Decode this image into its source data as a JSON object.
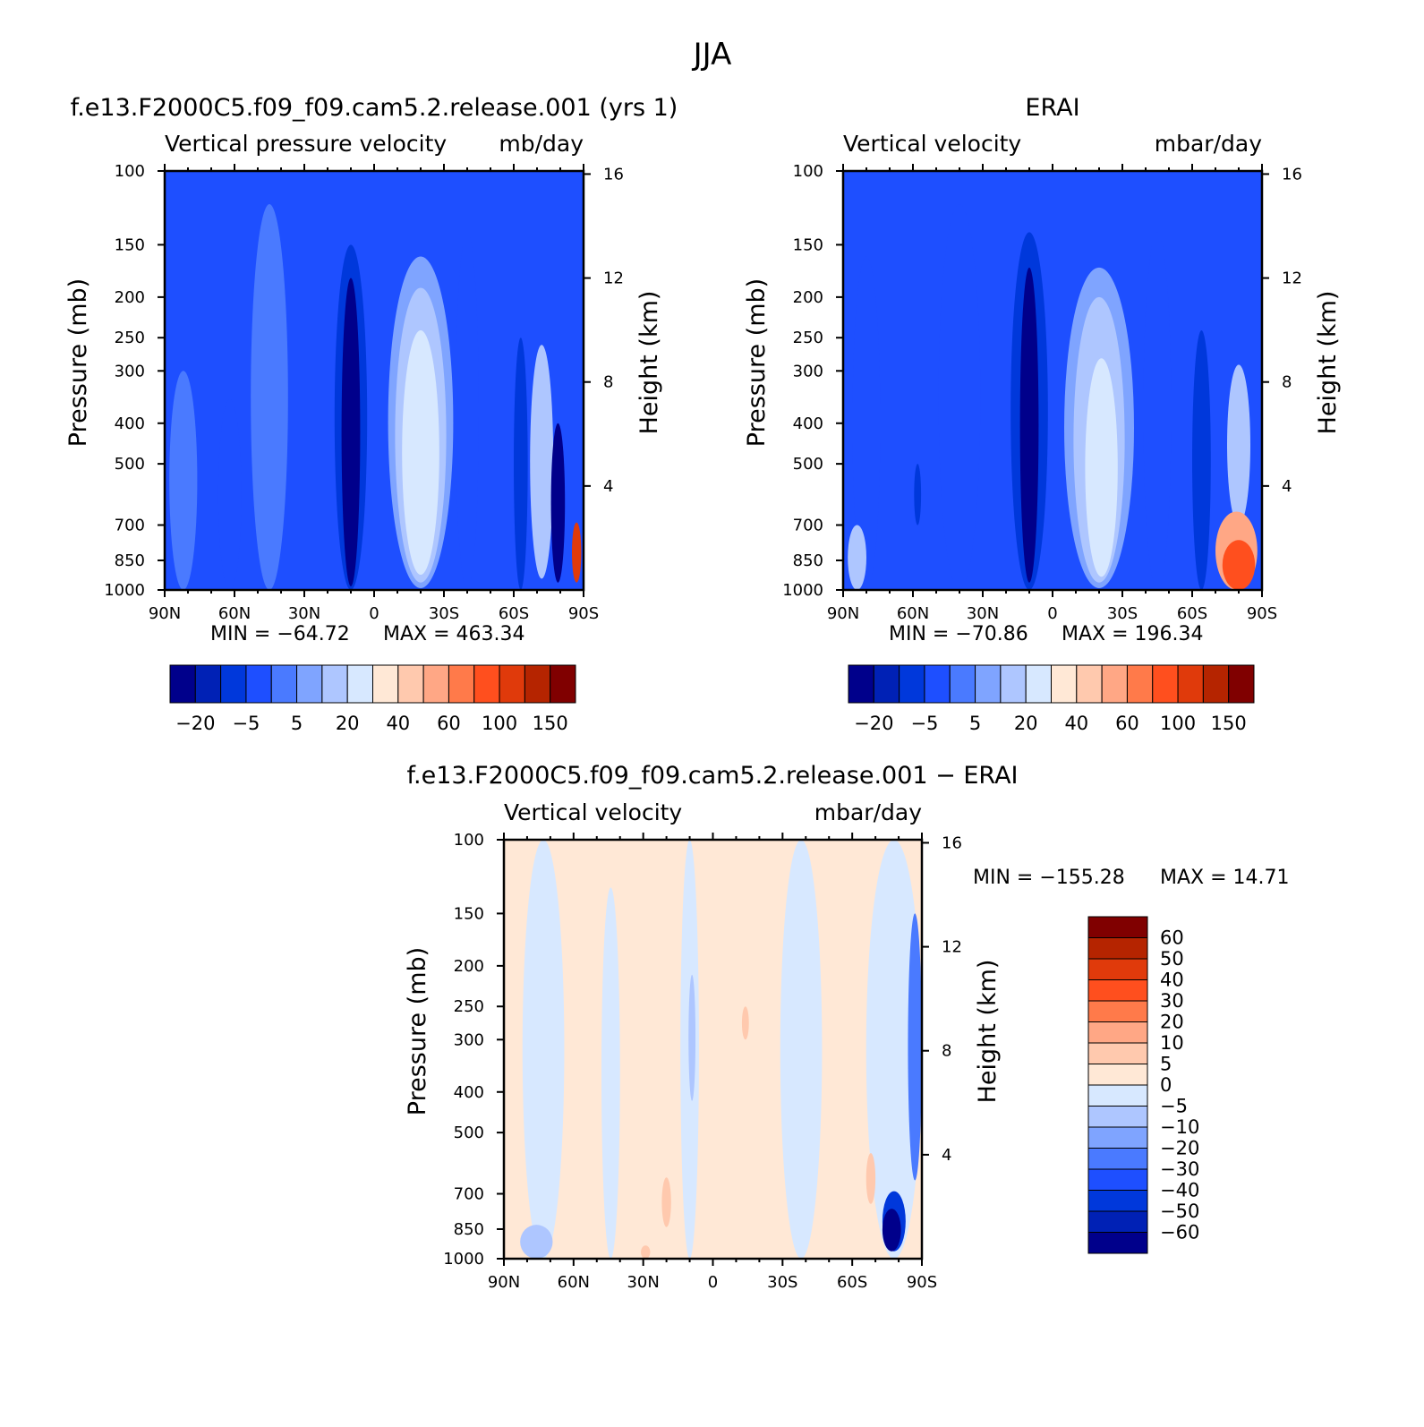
{
  "figure": {
    "title": "JJA"
  },
  "colors": {
    "abs_levels": [
      "#00008b",
      "#0021b5",
      "#0038db",
      "#1e4fff",
      "#4a7aff",
      "#7fa4ff",
      "#aec6ff",
      "#d7e8ff",
      "#ffe8d6",
      "#ffc9ae",
      "#ffa785",
      "#ff7a4a",
      "#ff4f1e",
      "#e03a0b",
      "#b52400",
      "#800000"
    ],
    "diff_levels": [
      "#00008b",
      "#0021b5",
      "#0038db",
      "#1e4fff",
      "#4a7aff",
      "#7fa4ff",
      "#aec6ff",
      "#d7e8ff",
      "#ffe8d6",
      "#ffc9ae",
      "#ffa785",
      "#ff7a4a",
      "#ff4f1e",
      "#e03a0b",
      "#b52400",
      "#800000"
    ]
  },
  "chart_data": [
    {
      "id": "model",
      "type": "heatmap",
      "title": "f.e13.F2000C5.f09_f09.cam5.2.release.001 (yrs 1)",
      "left_subtitle": "Vertical pressure velocity",
      "right_subtitle": "mb/day",
      "ylabel": "Pressure (mb)",
      "y2label": "Height (km)",
      "x_ticks": [
        "90N",
        "60N",
        "30N",
        "0",
        "30S",
        "60S",
        "90S"
      ],
      "x_range": [
        90,
        -90
      ],
      "y_ticks": [
        100,
        150,
        200,
        250,
        300,
        400,
        500,
        700,
        850,
        1000
      ],
      "y_range": [
        1000,
        100
      ],
      "y_scale": "log",
      "y2_ticks": [
        16,
        12,
        8,
        4
      ],
      "min_label": "MIN = −64.72",
      "max_label": "MAX = 463.34",
      "min": -64.72,
      "max": 463.34,
      "background_value": -10,
      "features": [
        {
          "lat": 82,
          "p_top": 300,
          "p_bot": 1000,
          "halfwidth": 6,
          "value": 1,
          "level": 4
        },
        {
          "lat": 62,
          "p_top": 350,
          "p_bot": 1000,
          "halfwidth": 5,
          "value": -30,
          "level": 3
        },
        {
          "lat": 45,
          "p_top": 120,
          "p_bot": 1000,
          "halfwidth": 8,
          "value": -20,
          "level": 4
        },
        {
          "lat": 10,
          "p_top": 150,
          "p_bot": 1000,
          "halfwidth": 7,
          "value": -40,
          "level": 2
        },
        {
          "lat": 10,
          "p_top": 180,
          "p_bot": 980,
          "halfwidth": 4,
          "value": -60,
          "level": 0
        },
        {
          "lat": -20,
          "p_top": 160,
          "p_bot": 990,
          "halfwidth": 14,
          "value": 5,
          "level": 5
        },
        {
          "lat": -20,
          "p_top": 190,
          "p_bot": 960,
          "halfwidth": 11,
          "value": 10,
          "level": 6
        },
        {
          "lat": -20,
          "p_top": 240,
          "p_bot": 920,
          "halfwidth": 8,
          "value": 20,
          "level": 7
        },
        {
          "lat": -40,
          "p_top": 140,
          "p_bot": 1000,
          "halfwidth": 5,
          "value": -15,
          "level": 3
        },
        {
          "lat": -63,
          "p_top": 250,
          "p_bot": 1000,
          "halfwidth": 3,
          "value": -40,
          "level": 2
        },
        {
          "lat": -72,
          "p_top": 260,
          "p_bot": 940,
          "halfwidth": 5,
          "value": 10,
          "level": 6
        },
        {
          "lat": -79,
          "p_top": 400,
          "p_bot": 960,
          "halfwidth": 3,
          "value": -60,
          "level": 0
        },
        {
          "lat": -87,
          "p_top": 690,
          "p_bot": 960,
          "halfwidth": 2,
          "value": 100,
          "level": 13
        }
      ],
      "colorbar": {
        "labels": [
          "−20",
          "−5",
          "5",
          "20",
          "40",
          "60",
          "100",
          "150"
        ]
      }
    },
    {
      "id": "obs",
      "type": "heatmap",
      "title": "ERAI",
      "left_subtitle": "Vertical velocity",
      "right_subtitle": "mbar/day",
      "ylabel": "Pressure (mb)",
      "y2label": "Height (km)",
      "x_ticks": [
        "90N",
        "60N",
        "30N",
        "0",
        "30S",
        "60S",
        "90S"
      ],
      "x_range": [
        90,
        -90
      ],
      "y_ticks": [
        100,
        150,
        200,
        250,
        300,
        400,
        500,
        700,
        850,
        1000
      ],
      "y_range": [
        1000,
        100
      ],
      "y_scale": "log",
      "y2_ticks": [
        16,
        12,
        8,
        4
      ],
      "min_label": "MIN = −70.86",
      "max_label": "MAX = 196.34",
      "min": -70.86,
      "max": 196.34,
      "background_value": -10,
      "features": [
        {
          "lat": 80,
          "p_top": 160,
          "p_bot": 1000,
          "halfwidth": 6,
          "value": -20,
          "level": 3
        },
        {
          "lat": 84,
          "p_top": 700,
          "p_bot": 1000,
          "halfwidth": 4,
          "value": 10,
          "level": 6
        },
        {
          "lat": 58,
          "p_top": 500,
          "p_bot": 700,
          "halfwidth": 1.5,
          "value": -40,
          "level": 2
        },
        {
          "lat": 40,
          "p_top": 120,
          "p_bot": 1000,
          "halfwidth": 9,
          "value": -20,
          "level": 3
        },
        {
          "lat": 10,
          "p_top": 140,
          "p_bot": 1000,
          "halfwidth": 8,
          "value": -40,
          "level": 2
        },
        {
          "lat": 10,
          "p_top": 170,
          "p_bot": 960,
          "halfwidth": 4,
          "value": -60,
          "level": 0
        },
        {
          "lat": -20,
          "p_top": 170,
          "p_bot": 990,
          "halfwidth": 15,
          "value": 5,
          "level": 5
        },
        {
          "lat": -20,
          "p_top": 200,
          "p_bot": 960,
          "halfwidth": 11,
          "value": 10,
          "level": 6
        },
        {
          "lat": -21,
          "p_top": 280,
          "p_bot": 930,
          "halfwidth": 7,
          "value": 20,
          "level": 7
        },
        {
          "lat": -45,
          "p_top": 140,
          "p_bot": 1000,
          "halfwidth": 6,
          "value": -15,
          "level": 3
        },
        {
          "lat": -64,
          "p_top": 240,
          "p_bot": 1000,
          "halfwidth": 4,
          "value": -40,
          "level": 2
        },
        {
          "lat": -80,
          "p_top": 290,
          "p_bot": 700,
          "halfwidth": 5,
          "value": 10,
          "level": 6
        },
        {
          "lat": -79,
          "p_top": 650,
          "p_bot": 1000,
          "halfwidth": 9,
          "value": 40,
          "level": 10
        },
        {
          "lat": -80,
          "p_top": 760,
          "p_bot": 1000,
          "halfwidth": 7,
          "value": 100,
          "level": 12
        }
      ],
      "colorbar": {
        "labels": [
          "−20",
          "−5",
          "5",
          "20",
          "40",
          "60",
          "100",
          "150"
        ]
      }
    },
    {
      "id": "diff",
      "type": "heatmap",
      "title": "f.e13.F2000C5.f09_f09.cam5.2.release.001 − ERAI",
      "left_subtitle": "Vertical velocity",
      "right_subtitle": "mbar/day",
      "ylabel": "Pressure (mb)",
      "y2label": "Height (km)",
      "x_ticks": [
        "90N",
        "60N",
        "30N",
        "0",
        "30S",
        "60S",
        "90S"
      ],
      "x_range": [
        90,
        -90
      ],
      "y_ticks": [
        100,
        150,
        200,
        250,
        300,
        400,
        500,
        700,
        850,
        1000
      ],
      "y_range": [
        1000,
        100
      ],
      "y_scale": "log",
      "y2_ticks": [
        16,
        12,
        8,
        4
      ],
      "min_label": "MIN = −155.28",
      "max_label": "MAX =   14.71",
      "min": -155.28,
      "max": 14.71,
      "background_value": 2,
      "features": [
        {
          "lat": 73,
          "p_top": 100,
          "p_bot": 1000,
          "halfwidth": 9,
          "value": -2,
          "level": 7
        },
        {
          "lat": 76,
          "p_top": 830,
          "p_bot": 1000,
          "halfwidth": 7,
          "value": -7,
          "level": 6
        },
        {
          "lat": 44,
          "p_top": 130,
          "p_bot": 1000,
          "halfwidth": 4,
          "value": -2,
          "level": 7
        },
        {
          "lat": 10,
          "p_top": 100,
          "p_bot": 1000,
          "halfwidth": 4,
          "value": -2,
          "level": 7
        },
        {
          "lat": 9,
          "p_top": 210,
          "p_bot": 420,
          "halfwidth": 1.5,
          "value": -7,
          "level": 6
        },
        {
          "lat": -14,
          "p_top": 250,
          "p_bot": 300,
          "halfwidth": 1.5,
          "value": 7,
          "level": 9
        },
        {
          "lat": 20,
          "p_top": 640,
          "p_bot": 840,
          "halfwidth": 2,
          "value": 7,
          "level": 9
        },
        {
          "lat": 29,
          "p_top": 930,
          "p_bot": 1000,
          "halfwidth": 2,
          "value": 7,
          "level": 9
        },
        {
          "lat": -38,
          "p_top": 100,
          "p_bot": 1000,
          "halfwidth": 9,
          "value": -2,
          "level": 7
        },
        {
          "lat": -78,
          "p_top": 100,
          "p_bot": 1000,
          "halfwidth": 12,
          "value": -2,
          "level": 7
        },
        {
          "lat": -68,
          "p_top": 560,
          "p_bot": 740,
          "halfwidth": 2,
          "value": 7,
          "level": 9
        },
        {
          "lat": -78,
          "p_top": 690,
          "p_bot": 960,
          "halfwidth": 5,
          "value": -40,
          "level": 2
        },
        {
          "lat": -77,
          "p_top": 760,
          "p_bot": 960,
          "halfwidth": 4,
          "value": -60,
          "level": 0
        },
        {
          "lat": -87,
          "p_top": 150,
          "p_bot": 650,
          "halfwidth": 3,
          "value": -15,
          "level": 4
        }
      ],
      "colorbar": {
        "labels": [
          "60",
          "50",
          "40",
          "30",
          "20",
          "10",
          "5",
          "0",
          "−5",
          "−10",
          "−20",
          "−30",
          "−40",
          "−50",
          "−60"
        ]
      }
    }
  ]
}
